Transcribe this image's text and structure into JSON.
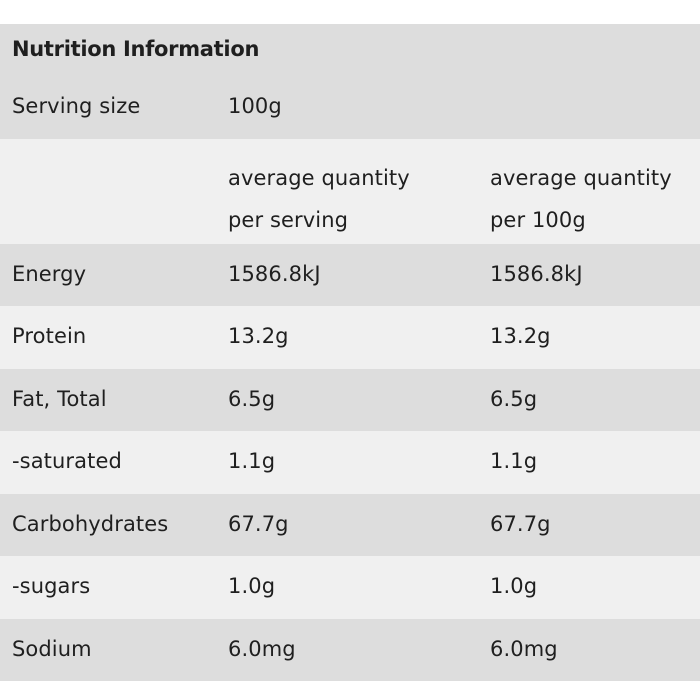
{
  "title": "Nutrition Information",
  "serving": {
    "label": "Serving size",
    "value": "100g"
  },
  "columns": {
    "per_serving_line1": "average quantity",
    "per_serving_line2": "per serving",
    "per_100g_line1": "average quantity",
    "per_100g_line2": "per 100g"
  },
  "rows": [
    {
      "name": "Energy",
      "per_serving": "1586.8kJ",
      "per_100g": "1586.8kJ"
    },
    {
      "name": "Protein",
      "per_serving": "13.2g",
      "per_100g": "13.2g"
    },
    {
      "name": "Fat, Total",
      "per_serving": "6.5g",
      "per_100g": "6.5g"
    },
    {
      "name": "-saturated",
      "per_serving": "1.1g",
      "per_100g": "1.1g"
    },
    {
      "name": "Carbohydrates",
      "per_serving": "67.7g",
      "per_100g": "67.7g"
    },
    {
      "name": "-sugars",
      "per_serving": "1.0g",
      "per_100g": "1.0g"
    },
    {
      "name": "Sodium",
      "per_serving": "6.0mg",
      "per_100g": "6.0mg"
    }
  ],
  "colors": {
    "row_dark": "#dddddd",
    "row_light": "#f0f0f0",
    "text": "#1f1f1f"
  }
}
